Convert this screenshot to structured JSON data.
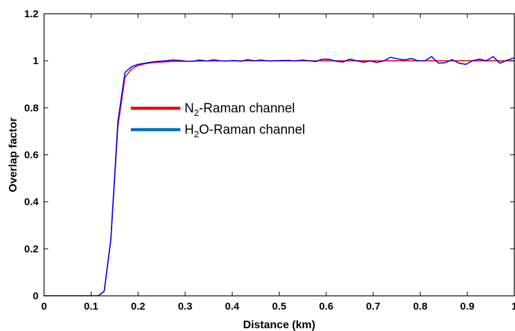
{
  "chart_data": {
    "type": "line",
    "title": "",
    "xlabel": "Distance (km)",
    "ylabel": "Overlap factor",
    "xlim": [
      0,
      1
    ],
    "ylim": [
      0,
      1.2
    ],
    "xticks": [
      0,
      0.1,
      0.2,
      0.3,
      0.4,
      0.5,
      0.6,
      0.7,
      0.8,
      0.9,
      1
    ],
    "xtick_labels": [
      "0",
      "0.1",
      "0.2",
      "0.3",
      "0.4",
      "0.5",
      "0.6",
      "0.7",
      "0.8",
      "0.9",
      "1"
    ],
    "yticks": [
      0,
      0.2,
      0.4,
      0.6,
      0.8,
      1,
      1.2
    ],
    "ytick_labels": [
      "0",
      "0.2",
      "0.4",
      "0.6",
      "0.8",
      "1",
      "1.2"
    ],
    "grid": false,
    "legend_position": "center-left",
    "series": [
      {
        "legend_main": "N",
        "legend_sub": "2",
        "legend_rest": "-Raman channel",
        "color": "#ff0000",
        "x": [
          0,
          0.05,
          0.1,
          0.115,
          0.128,
          0.142,
          0.157,
          0.172,
          0.186,
          0.2,
          0.215,
          0.23,
          0.25,
          0.27,
          0.3,
          0.35,
          0.4,
          0.5,
          0.6,
          0.7,
          0.8,
          0.9,
          1.0
        ],
        "y": [
          0,
          0,
          0,
          0,
          0.02,
          0.24,
          0.72,
          0.93,
          0.965,
          0.98,
          0.988,
          0.992,
          0.995,
          0.997,
          0.998,
          0.999,
          1.0,
          1.0,
          1.0,
          1.0,
          1.0,
          1.0,
          1.0
        ]
      },
      {
        "legend_main": "H",
        "legend_sub": "2",
        "legend_rest": "O-Raman channel",
        "color": "#0000ff",
        "legend_color": "#0072bd",
        "x": [
          0,
          0.05,
          0.1,
          0.115,
          0.128,
          0.142,
          0.157,
          0.172,
          0.186,
          0.2,
          0.215,
          0.23,
          0.244,
          0.259,
          0.273,
          0.288,
          0.302,
          0.317,
          0.331,
          0.346,
          0.36,
          0.375,
          0.389,
          0.404,
          0.418,
          0.433,
          0.447,
          0.462,
          0.476,
          0.491,
          0.505,
          0.52,
          0.534,
          0.549,
          0.563,
          0.578,
          0.592,
          0.607,
          0.621,
          0.636,
          0.65,
          0.665,
          0.679,
          0.694,
          0.708,
          0.723,
          0.737,
          0.752,
          0.766,
          0.781,
          0.795,
          0.81,
          0.824,
          0.839,
          0.853,
          0.868,
          0.882,
          0.897,
          0.911,
          0.926,
          0.94,
          0.955,
          0.969,
          0.984,
          1.0
        ],
        "y": [
          0,
          0,
          0,
          0,
          0.02,
          0.24,
          0.74,
          0.95,
          0.975,
          0.985,
          0.99,
          0.995,
          0.998,
          1.0,
          1.003,
          1.002,
          0.998,
          0.998,
          1.003,
          0.999,
          1.004,
          1.0,
          0.999,
          1.001,
          0.998,
          1.005,
          1.0,
          1.003,
          0.999,
          1.0,
          1.001,
          1.002,
          0.999,
          1.003,
          1.0,
          0.997,
          1.007,
          1.006,
          0.998,
          0.995,
          1.007,
          1.0,
          0.994,
          0.999,
          0.993,
          1.0,
          1.015,
          1.008,
          1.003,
          1.01,
          1.0,
          1.0,
          1.018,
          0.99,
          0.992,
          1.005,
          0.99,
          0.985,
          1.0,
          1.007,
          1.0,
          1.018,
          0.99,
          1.002,
          1.013
        ]
      }
    ]
  }
}
